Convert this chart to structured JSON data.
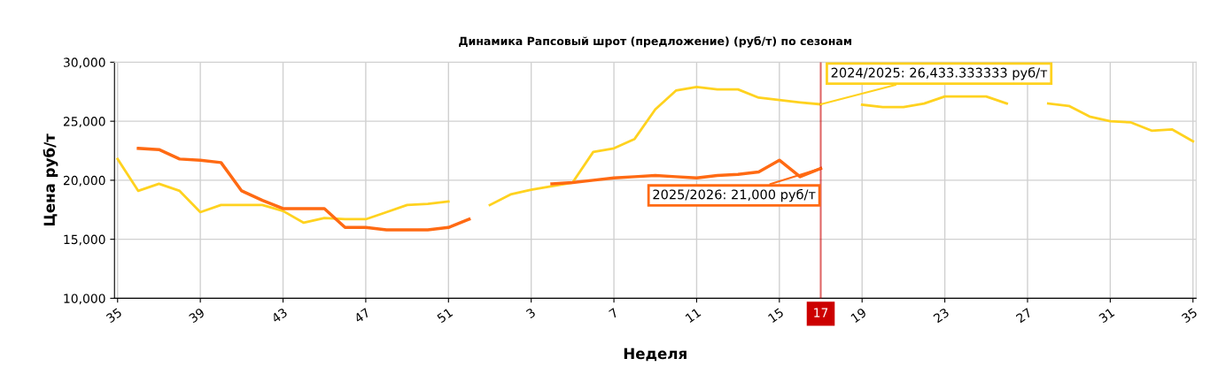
{
  "chart_data": {
    "type": "line",
    "title": "Динамика Рапсовый шрот (предложение) (руб/т) по сезонам",
    "xlabel": "Неделя",
    "ylabel": "Цена руб/т",
    "categories": [
      "35",
      null,
      null,
      null,
      "39",
      null,
      null,
      null,
      "43",
      null,
      null,
      null,
      "47",
      null,
      null,
      null,
      "51",
      null,
      null,
      null,
      "3",
      null,
      null,
      null,
      "7",
      null,
      null,
      null,
      "11",
      null,
      null,
      null,
      "15",
      null,
      "17",
      null,
      "19",
      null,
      null,
      null,
      "23",
      null,
      null,
      null,
      "27",
      null,
      null,
      null,
      "31",
      null,
      null,
      null,
      "35"
    ],
    "series": [
      {
        "name": "2024/2025",
        "color": "#ffd21f",
        "values": [
          21800,
          19100,
          19700,
          19100,
          17300,
          17900,
          17900,
          17900,
          17400,
          16400,
          16800,
          16700,
          16700,
          17300,
          17900,
          18000,
          18200,
          null,
          17900,
          18800,
          19200,
          19500,
          19800,
          22400,
          22700,
          23500,
          26000,
          27600,
          27900,
          27700,
          27700,
          27000,
          26800,
          26600,
          26433.333333,
          null,
          26400,
          26200,
          26200,
          26500,
          27100,
          27100,
          27100,
          26500,
          null,
          26500,
          26300,
          25400,
          25000,
          24900,
          24200,
          24300,
          23300
        ]
      },
      {
        "name": "2025/2026",
        "color": "#ff6a13",
        "values": [
          null,
          22700,
          22600,
          21800,
          21700,
          21500,
          19100,
          18300,
          17600,
          17600,
          17600,
          16000,
          16000,
          15800,
          15800,
          15800,
          16000,
          16700,
          null,
          null,
          null,
          19700,
          19800,
          20000,
          20200,
          20300,
          20400,
          20300,
          20200,
          20400,
          20500,
          20700,
          21700,
          20300,
          21000,
          null,
          null,
          null,
          null,
          null,
          null,
          null,
          null,
          null,
          null,
          null,
          null,
          null,
          null,
          null,
          null,
          null,
          null
        ]
      }
    ],
    "annotations": [
      {
        "text": ": 26,433.333333 руб/т",
        "x": "17",
        "y": 26433.333333
      },
      {
        "text": ": 21,000 руб/т",
        "x": "17",
        "y": 21000
      }
    ],
    "ref_lines": [
      {
        "axis": "x",
        "value": "17",
        "label": "17",
        "color": "#cc0000"
      }
    ],
    "ylim": [
      10000,
      30000
    ],
    "yticks": [
      {
        "value": 10000,
        "label": "10,000"
      },
      {
        "value": 15000,
        "label": "15,000"
      },
      {
        "value": 20000,
        "label": "20,000"
      },
      {
        "value": 25000,
        "label": "25,000"
      },
      {
        "value": 30000,
        "label": "30,000"
      }
    ],
    "grid": true,
    "legend": false,
    "line_style": "solid",
    "marker": "none"
  }
}
